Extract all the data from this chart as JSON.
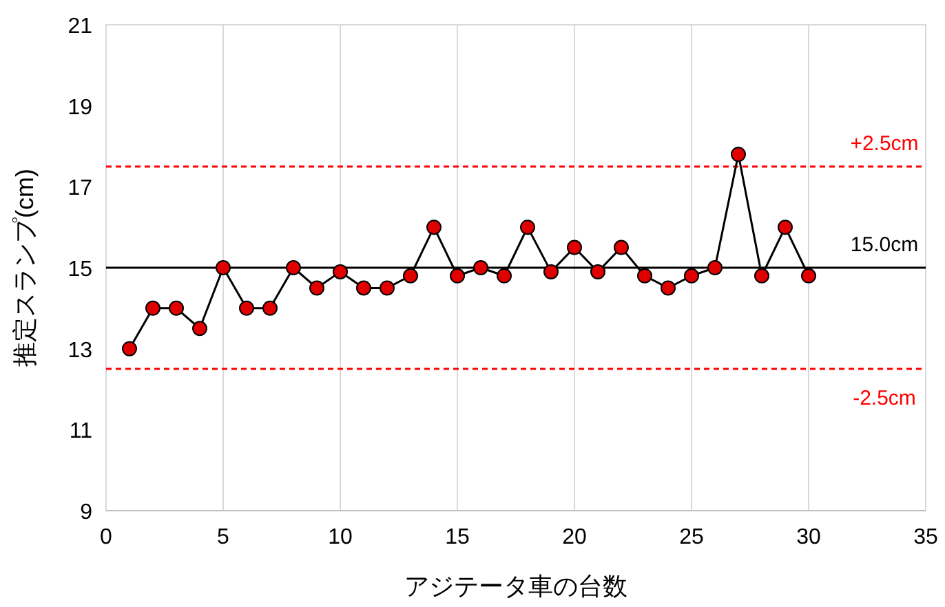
{
  "chart_data": {
    "type": "line",
    "xlabel": "アジテータ車の台数",
    "ylabel": "推定スランプ(cm)",
    "x": [
      1,
      2,
      3,
      4,
      5,
      6,
      7,
      8,
      9,
      10,
      11,
      12,
      13,
      14,
      15,
      16,
      17,
      18,
      19,
      20,
      21,
      22,
      23,
      24,
      25,
      26,
      27,
      28,
      29,
      30
    ],
    "series": [
      {
        "color": "#e00000",
        "values": [
          13,
          14,
          14,
          13.5,
          15,
          14,
          14,
          15,
          14.5,
          14.9,
          14.5,
          14.5,
          14.8,
          16,
          14.8,
          15,
          14.8,
          16,
          14.9,
          15.5,
          14.9,
          15.5,
          14.8,
          14.5,
          14.8,
          15,
          17.8,
          14.8,
          16,
          14.8
        ]
      }
    ],
    "xlim": [
      0,
      35
    ],
    "xticks": [
      0,
      5,
      10,
      15,
      20,
      25,
      30,
      35
    ],
    "ylim": [
      9,
      21
    ],
    "yticks": [
      9,
      11,
      13,
      15,
      17,
      19,
      21
    ],
    "grid": "x",
    "marker": "circle",
    "line_style": "solid",
    "ref_lines": [
      {
        "axis": "y",
        "value": 17.5,
        "label": "+2.5cm",
        "color": "#ff0000",
        "line_style": "dashed"
      },
      {
        "axis": "y",
        "value": 15,
        "label": "15.0cm",
        "color": "#000000",
        "line_style": "solid"
      },
      {
        "axis": "y",
        "value": 12.5,
        "label": "-2.5cm",
        "color": "#ff0000",
        "line_style": "dashed"
      }
    ]
  }
}
